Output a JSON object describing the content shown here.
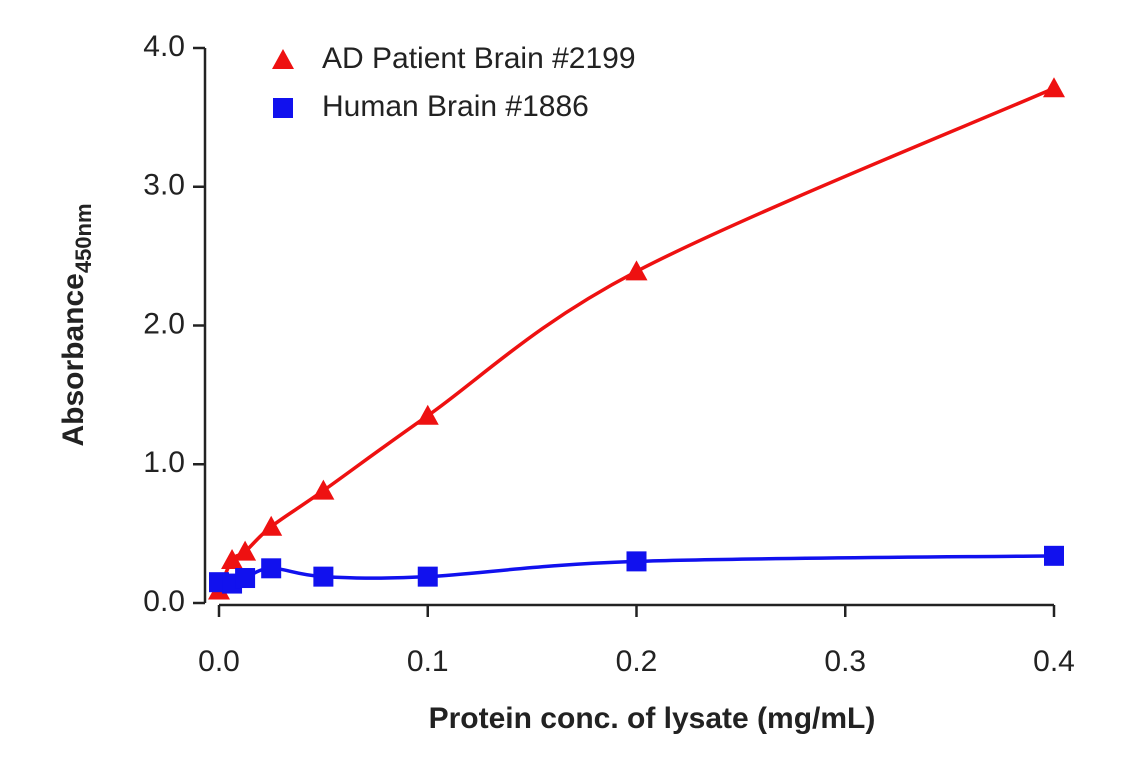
{
  "chart_data": {
    "type": "scatter",
    "x_label": "Protein conc. of lysate (mg/mL)",
    "y_label": "Absorbance",
    "y_label_sub": "450nm",
    "x": [
      0,
      0.00625,
      0.0125,
      0.025,
      0.05,
      0.1,
      0.2,
      0.4
    ],
    "series": [
      {
        "name": "AD Patient Brain #2199",
        "color": "#ee1111",
        "marker": "triangle",
        "values": [
          0.09,
          0.31,
          0.37,
          0.55,
          0.81,
          1.35,
          2.39,
          3.71
        ]
      },
      {
        "name": "Human Brain #1886",
        "color": "#1111ee",
        "marker": "square",
        "values": [
          0.15,
          0.14,
          0.18,
          0.25,
          0.19,
          0.19,
          0.3,
          0.34
        ]
      }
    ],
    "xlim": [
      0,
      0.4
    ],
    "xticks": [
      {
        "value": 0,
        "label": "0.0"
      },
      {
        "value": 0.1,
        "label": "0.1"
      },
      {
        "value": 0.2,
        "label": "0.2"
      },
      {
        "value": 0.3,
        "label": "0.3"
      },
      {
        "value": 0.4,
        "label": "0.4"
      }
    ],
    "ylim": [
      0,
      4
    ],
    "yticks": [
      {
        "value": 0,
        "label": "0.0"
      },
      {
        "value": 1,
        "label": "1.0"
      },
      {
        "value": 2,
        "label": "2.0"
      },
      {
        "value": 3,
        "label": "3.0"
      },
      {
        "value": 4,
        "label": "4.0"
      }
    ],
    "legend": "upper-left",
    "grid": false
  }
}
